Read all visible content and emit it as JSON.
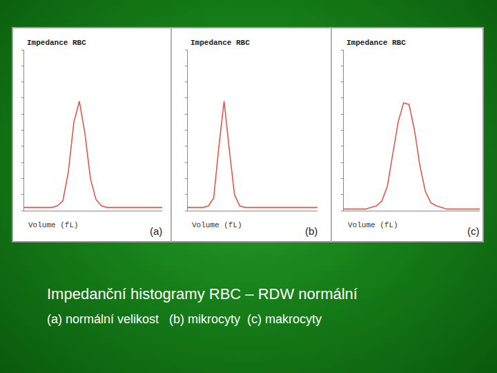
{
  "chart_data": [
    {
      "type": "line",
      "title": "Impedance RBC",
      "x_label": "Volume (fL)",
      "annotation": "(a)",
      "x": [
        0,
        10,
        20,
        30,
        40,
        50,
        60,
        70,
        80,
        90,
        100,
        110,
        120,
        130,
        140,
        150,
        160,
        170,
        180,
        190,
        200,
        210,
        220,
        230,
        240,
        250
      ],
      "values": [
        2,
        2,
        2,
        2,
        2,
        2,
        3,
        6,
        24,
        55,
        68,
        48,
        20,
        7,
        3,
        2,
        2,
        2,
        2,
        2,
        2,
        2,
        2,
        2,
        2,
        2
      ],
      "color": "#e0584c",
      "xlim": [
        0,
        250
      ],
      "ylim": [
        0,
        100
      ],
      "yticks": [
        0,
        10,
        20,
        30,
        40,
        50,
        60,
        70,
        80,
        90,
        100
      ],
      "grid": false,
      "tick_labels": false
    },
    {
      "type": "line",
      "title": "Impedance RBC",
      "x_label": "Volume (fL)",
      "annotation": "(b)",
      "x": [
        0,
        10,
        20,
        30,
        40,
        50,
        60,
        70,
        80,
        90,
        100,
        110,
        120,
        130,
        140,
        150,
        160,
        170,
        180,
        190,
        200,
        210,
        220,
        230,
        240,
        250
      ],
      "values": [
        2,
        2,
        2,
        2,
        3,
        8,
        40,
        68,
        38,
        10,
        3,
        2,
        2,
        2,
        2,
        2,
        2,
        2,
        2,
        2,
        2,
        2,
        2,
        2,
        2,
        2
      ],
      "color": "#e0584c",
      "xlim": [
        0,
        250
      ],
      "ylim": [
        0,
        100
      ],
      "yticks": [
        0,
        10,
        20,
        30,
        40,
        50,
        60,
        70,
        80,
        90,
        100
      ],
      "grid": false,
      "tick_labels": false
    },
    {
      "type": "line",
      "title": "Impedance RBC",
      "x_label": "Volume (fL)",
      "annotation": "(c)",
      "x": [
        0,
        10,
        20,
        30,
        40,
        50,
        60,
        70,
        80,
        90,
        100,
        110,
        120,
        130,
        140,
        150,
        160,
        170,
        180,
        190,
        200,
        210,
        220,
        230,
        240,
        250
      ],
      "values": [
        1,
        1,
        1,
        1,
        1,
        2,
        3,
        6,
        15,
        35,
        55,
        67,
        66,
        50,
        28,
        12,
        5,
        3,
        2,
        1,
        1,
        1,
        1,
        1,
        1,
        1
      ],
      "color": "#e0584c",
      "xlim": [
        0,
        250
      ],
      "ylim": [
        0,
        100
      ],
      "yticks": [
        0,
        10,
        20,
        30,
        40,
        50,
        60,
        70,
        80,
        90,
        100
      ],
      "grid": false,
      "tick_labels": false
    }
  ],
  "caption": {
    "title": "Impedanční histogramy RBC – RDW normální",
    "subtitle": "(a) normální velikost   (b) mikrocyty  (c) makrocyty"
  }
}
